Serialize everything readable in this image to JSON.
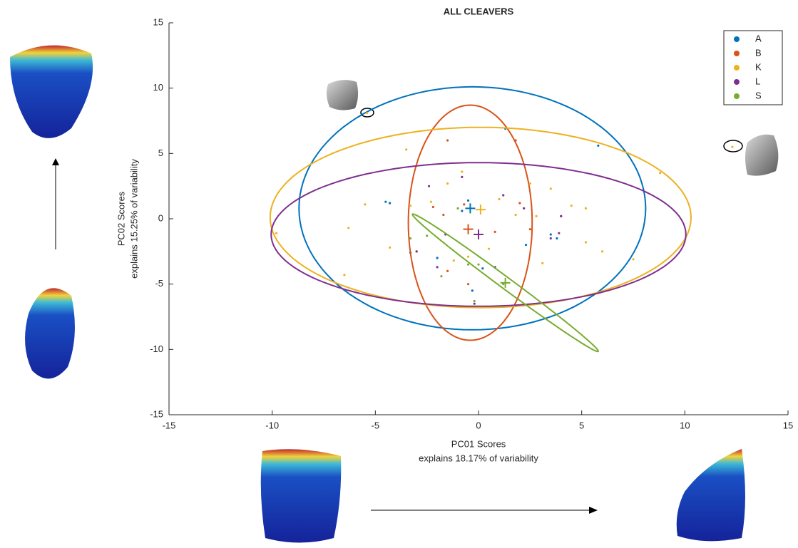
{
  "chart_data": {
    "type": "scatter",
    "title": "ALL CLEAVERS",
    "xlabel": [
      "PC01 Scores",
      "explains 18.17% of variability"
    ],
    "ylabel": [
      "PC02 Scores",
      "explains 15.25% of variability"
    ],
    "xlim": [
      -15,
      15
    ],
    "ylim": [
      -15,
      15
    ],
    "xticks": [
      -15,
      -10,
      -5,
      0,
      5,
      10,
      15
    ],
    "yticks": [
      -15,
      -10,
      -5,
      0,
      5,
      10,
      15
    ],
    "legend": "upper right",
    "series": [
      {
        "name": "A",
        "color": "#0072bd",
        "x": [
          -4.5,
          -0.5,
          -0.3,
          3.5,
          4.0,
          5.8,
          -2.0,
          2.3,
          -0.8,
          1.3,
          -3.3,
          3.8,
          0.2,
          -4.3
        ],
        "y": [
          1.3,
          1.4,
          -5.5,
          -1.2,
          0.2,
          5.6,
          -3.0,
          -2.0,
          0.6,
          6.9,
          -2.6,
          -1.5,
          -3.8,
          1.2
        ],
        "centroid": [
          -0.4,
          0.8
        ],
        "ellipse": {
          "center": [
            -0.3,
            0.8
          ],
          "axes": [
            [
              8.4,
              0
            ],
            [
              0,
              9.3
            ]
          ]
        }
      },
      {
        "name": "B",
        "color": "#d95319",
        "x": [
          -1.5,
          -2.2,
          -1.5,
          -1.7,
          0.8,
          2.5,
          2.0,
          -0.5,
          1.8,
          -0.7
        ],
        "y": [
          6.0,
          0.9,
          -4.0,
          0.3,
          -1.0,
          -0.8,
          1.2,
          -5.0,
          6.0,
          1.1
        ],
        "centroid": [
          -0.5,
          -0.8
        ],
        "ellipse": {
          "center": [
            -0.4,
            -0.3
          ],
          "axes": [
            [
              3.0,
              0
            ],
            [
              0,
              9.0
            ]
          ]
        }
      },
      {
        "name": "K",
        "color": "#edb120",
        "x": [
          -5.4,
          12.3,
          -9.8,
          -6.5,
          -6.3,
          -5.5,
          -4.3,
          -3.3,
          -3.0,
          -2.3,
          -1.5,
          -0.8,
          -0.5,
          1.0,
          1.8,
          2.5,
          3.5,
          4.5,
          5.2,
          6.0,
          7.5,
          8.8,
          -3.5,
          -1.2,
          0.5,
          2.8,
          5.2,
          3.1
        ],
        "y": [
          8.1,
          5.5,
          -1.1,
          -4.3,
          -0.7,
          1.1,
          -2.2,
          1.0,
          -2.5,
          1.3,
          2.7,
          3.6,
          -2.9,
          1.5,
          0.3,
          2.7,
          2.3,
          1.0,
          -1.8,
          -2.5,
          -3.1,
          3.5,
          5.3,
          -3.2,
          -2.3,
          0.2,
          0.8,
          -3.4
        ],
        "centroid": [
          0.1,
          0.7
        ],
        "ellipse": {
          "center": [
            0.1,
            0.1
          ],
          "axes": [
            [
              10.2,
              0
            ],
            [
              0,
              6.9
            ]
          ]
        }
      },
      {
        "name": "L",
        "color": "#7e2f8e",
        "x": [
          -3.0,
          -2.0,
          -1.6,
          -0.8,
          0.8,
          1.2,
          3.5,
          3.9,
          2.2,
          -0.2,
          -2.4,
          4.0
        ],
        "y": [
          -2.5,
          -3.7,
          -1.2,
          3.2,
          -3.7,
          1.8,
          -1.5,
          -1.1,
          0.8,
          -6.5,
          2.5,
          0.2
        ],
        "centroid": [
          0.0,
          -1.2
        ],
        "ellipse": {
          "center": [
            0.0,
            -1.2
          ],
          "axes": [
            [
              10.05,
              0
            ],
            [
              0,
              5.5
            ]
          ]
        }
      },
      {
        "name": "S",
        "color": "#77ac30",
        "x": [
          -2.5,
          -1.8,
          -0.5,
          0.0,
          -0.2,
          1.2,
          -1.0,
          -3.3
        ],
        "y": [
          -1.3,
          -4.4,
          -3.5,
          -3.5,
          -6.3,
          -5.0,
          0.8,
          -1.5
        ],
        "centroid": [
          1.3,
          -4.9
        ],
        "ellipse": {
          "center": [
            1.3,
            -4.9
          ],
          "axes": [
            [
              4.5,
              -5.25
            ],
            [
              0.17,
              0.35
            ]
          ]
        }
      }
    ]
  }
}
